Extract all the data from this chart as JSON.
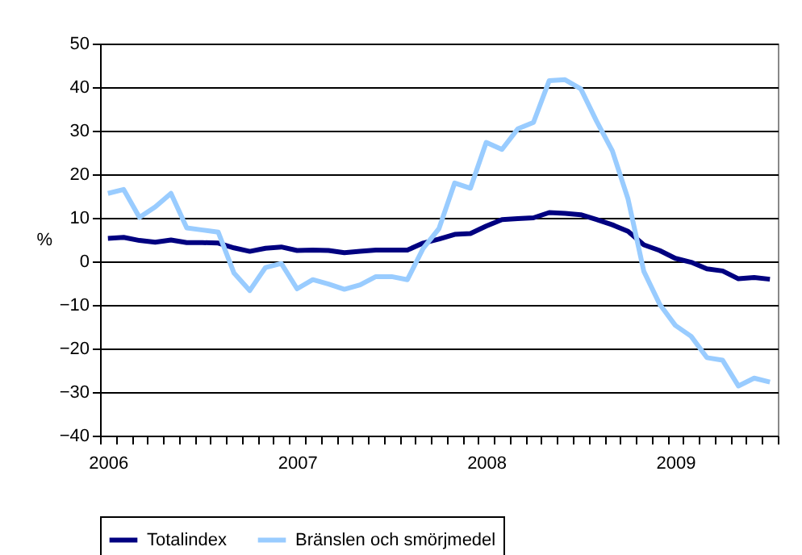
{
  "chart_data": {
    "type": "line",
    "ylabel": "%",
    "categories": [
      "2006",
      null,
      null,
      null,
      null,
      null,
      null,
      null,
      null,
      null,
      null,
      null,
      "2007",
      null,
      null,
      null,
      null,
      null,
      null,
      null,
      null,
      null,
      null,
      null,
      "2008",
      null,
      null,
      null,
      null,
      null,
      null,
      null,
      null,
      null,
      null,
      null,
      "2009",
      null,
      null,
      null,
      null,
      null,
      null
    ],
    "series": [
      {
        "name": "Totalindex",
        "color": "#000080",
        "values": [
          5.3,
          5.5,
          4.8,
          4.4,
          4.9,
          4.3,
          4.3,
          4.2,
          3.1,
          2.3,
          3.0,
          3.3,
          2.5,
          2.6,
          2.5,
          2.0,
          2.3,
          2.6,
          2.6,
          2.6,
          4.2,
          5.1,
          6.2,
          6.4,
          8.1,
          9.6,
          9.8,
          10.0,
          11.2,
          11.0,
          10.7,
          9.6,
          8.4,
          6.9,
          3.8,
          2.5,
          0.7,
          -0.2,
          -1.7,
          -2.2,
          -4.0,
          -3.7,
          -4.1
        ]
      },
      {
        "name": "Bränslen och smörjmedel",
        "color": "#99ccff",
        "values": [
          15.6,
          16.5,
          10.1,
          12.5,
          15.6,
          7.7,
          7.2,
          6.7,
          -2.7,
          -6.7,
          -1.4,
          -0.5,
          -6.3,
          -4.2,
          -5.2,
          -6.4,
          -5.4,
          -3.5,
          -3.5,
          -4.2,
          3.0,
          7.5,
          18.0,
          16.8,
          27.3,
          25.7,
          30.4,
          31.9,
          41.5,
          41.7,
          39.6,
          32.2,
          25.4,
          14.3,
          -2.3,
          -9.8,
          -14.7,
          -17.2,
          -22.1,
          -22.7,
          -28.6,
          -26.8,
          -27.7
        ]
      }
    ],
    "ylim": [
      -40,
      50
    ],
    "yticks": [
      -40,
      -30,
      -20,
      -10,
      0,
      10,
      20,
      30,
      40,
      50
    ],
    "grid": "y",
    "legend": "bottom"
  }
}
